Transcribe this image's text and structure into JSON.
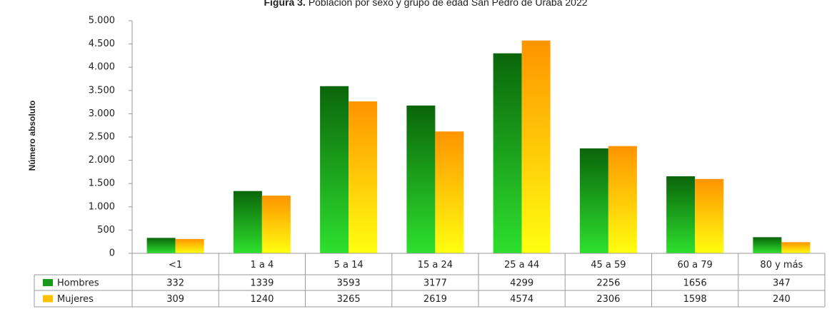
{
  "chart_data": {
    "type": "bar",
    "title_prefix": "Figura 3.",
    "title": "Población por sexo y grupo de edad San Pedro de Urabá 2022",
    "y_label": "Número absoluto",
    "categories": [
      "<1",
      "1 a 4",
      "5 a 14",
      "15 a 24",
      "25 a 44",
      "45 a 59",
      "60 a 79",
      "80 y más"
    ],
    "series": [
      {
        "name": "Hombres",
        "color": "#1a9a1a",
        "gradient": [
          "#0a650a",
          "#2ee02e"
        ],
        "values": [
          332,
          1339,
          3593,
          3177,
          4299,
          2256,
          1656,
          347
        ]
      },
      {
        "name": "Mujeres",
        "color": "#ffc000",
        "gradient": [
          "#ff9400",
          "#ffff10"
        ],
        "values": [
          309,
          1240,
          3265,
          2619,
          4574,
          2306,
          1598,
          240
        ]
      }
    ],
    "ylim": [
      0,
      5000
    ],
    "yticks": [
      0,
      500,
      {
        "value": 1000,
        "label": "1.000"
      },
      {
        "value": 1500,
        "label": "1.500"
      },
      {
        "value": 2000,
        "label": "2.000"
      },
      {
        "value": 2500,
        "label": "2.500"
      },
      {
        "value": 3000,
        "label": "3.000"
      },
      {
        "value": 3500,
        "label": "3.500"
      },
      {
        "value": 4000,
        "label": "4.000"
      },
      {
        "value": 4500,
        "label": "4.500"
      },
      {
        "value": 5000,
        "label": "5.000"
      }
    ],
    "grid": false
  }
}
